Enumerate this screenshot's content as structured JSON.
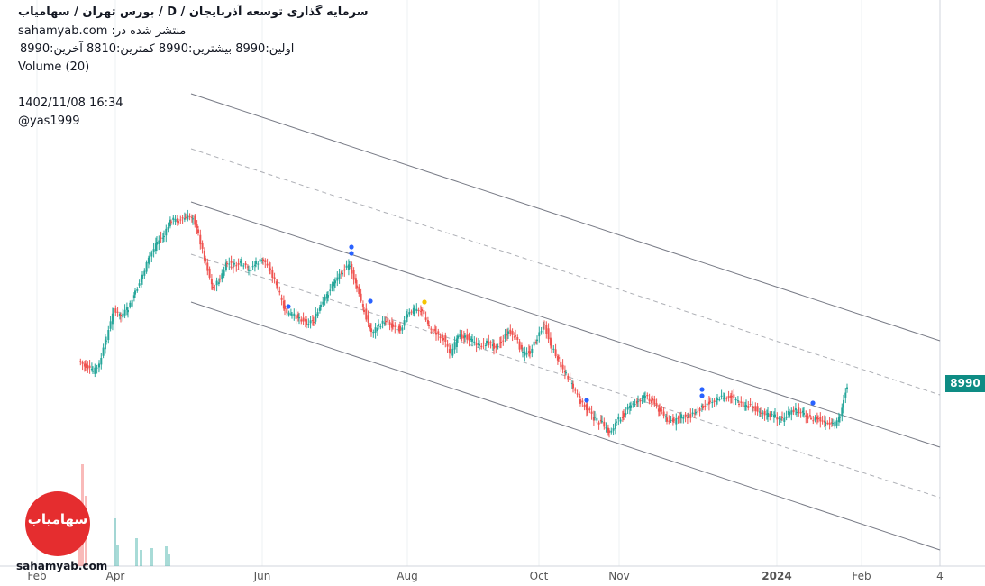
{
  "header": {
    "title": "سرمایه گذاری توسعه آذربایجان  /  D  /  بورس تهران / سهامیاب",
    "published": "sahamyab.com :منتشر شده در",
    "ohlc": "اولین:8990  بیشترین:8990  کمترین:8810  آخرین:8990",
    "volume": "Volume (20)",
    "datetime": "1402/11/08 16:34",
    "user": "@yas1999"
  },
  "price_badge": "8990",
  "watermark": "sahamyab.com",
  "logo_text": "سهامیاب",
  "colors": {
    "up": "#26a69a",
    "down": "#ef5350",
    "channel": "#787b86",
    "grid": "#eef0f3",
    "price_line": "#0e8c84",
    "marker_blue": "#2962ff",
    "marker_yellow": "#f5c400"
  },
  "chart_data": {
    "type": "candlestick",
    "y_axis_ticks": [
      "26000",
      "22000",
      "20000",
      "18000",
      "16000",
      "14000",
      "12500",
      "11300",
      "10100",
      "8990",
      "8150",
      "7350",
      "6550",
      "5950",
      "5450"
    ],
    "x_axis_ticks": [
      "Feb",
      "Apr",
      "Jun",
      "Aug",
      "Oct",
      "Nov",
      "2024",
      "Feb",
      "4"
    ],
    "scale": "log",
    "last_price": 8990,
    "ylim": [
      5400,
      27000
    ]
  }
}
